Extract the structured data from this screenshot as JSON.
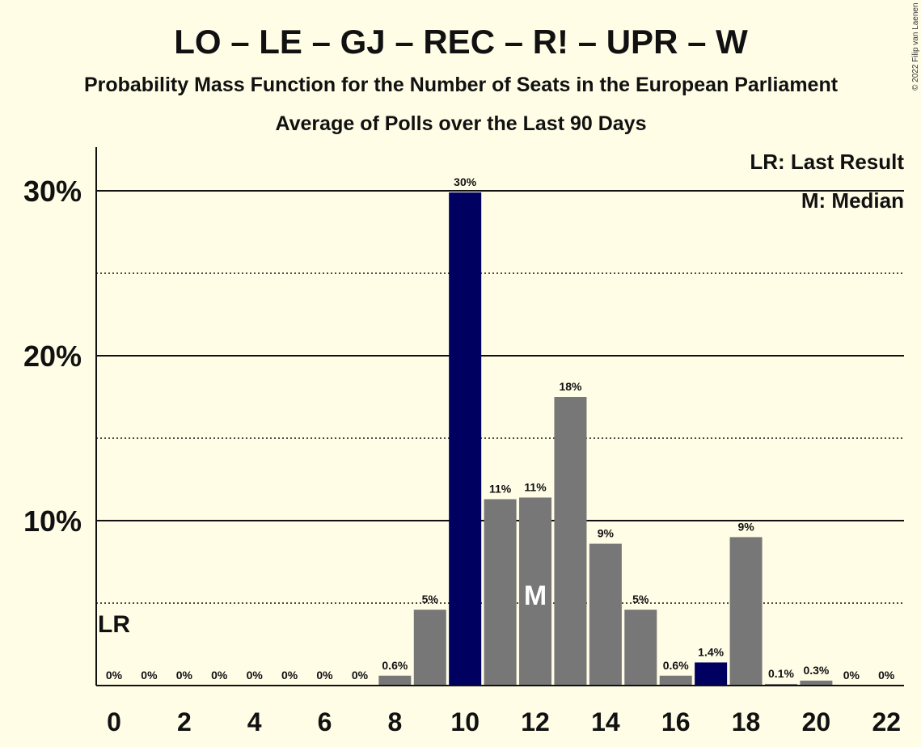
{
  "chart_data": {
    "type": "bar",
    "title": "LO – LE – GJ – REC – R! – UPR – W",
    "subtitle": "Probability Mass Function for the Number of Seats in the European Parliament",
    "subtitle2": "Average of Polls over the Last 90 Days",
    "copyright": "© 2022 Filip van Laenen",
    "x": [
      0,
      1,
      2,
      3,
      4,
      5,
      6,
      7,
      8,
      9,
      10,
      11,
      12,
      13,
      14,
      15,
      16,
      17,
      18,
      19,
      20,
      21,
      22
    ],
    "values": [
      0,
      0,
      0,
      0,
      0,
      0,
      0,
      0,
      0.6,
      4.6,
      29.9,
      11.3,
      11.4,
      17.5,
      8.6,
      4.6,
      0.6,
      1.4,
      9.0,
      0.1,
      0.3,
      0,
      0
    ],
    "data_labels": [
      "0%",
      "0%",
      "0%",
      "0%",
      "0%",
      "0%",
      "0%",
      "0%",
      "0.6%",
      "5%",
      "30%",
      "11%",
      "11%",
      "18%",
      "9%",
      "5%",
      "0.6%",
      "1.4%",
      "9%",
      "0.1%",
      "0.3%",
      "0%",
      "0%"
    ],
    "x_tick_labels": [
      "0",
      "2",
      "4",
      "6",
      "8",
      "10",
      "12",
      "14",
      "16",
      "18",
      "20",
      "22"
    ],
    "y_tick_labels": [
      "10%",
      "20%",
      "30%"
    ],
    "ylim": [
      0,
      32.5
    ],
    "last_result_seat": 0,
    "last_result_label": "LR",
    "median_seat": 12,
    "median_label": "M",
    "highlight_seats": [
      10,
      17
    ],
    "legend": [
      "LR: Last Result",
      "M: Median"
    ],
    "colors": {
      "background": "#FFFDE6",
      "bar": "#777777",
      "highlight": "#000060",
      "text": "#111111"
    }
  }
}
